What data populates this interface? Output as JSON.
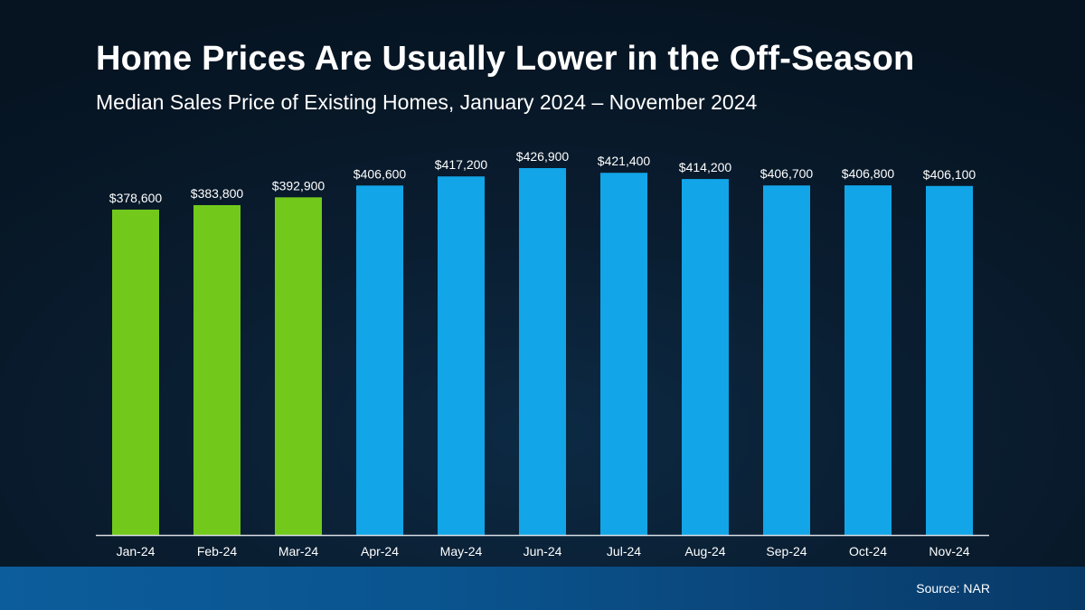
{
  "title": "Home Prices Are Usually Lower in the Off-Season",
  "subtitle": "Median Sales Price of Existing Homes, January 2024 – November 2024",
  "source": "Source: NAR",
  "colors": {
    "off_season": "#72c91c",
    "peak": "#12a5e8",
    "axis": "#d9dde3",
    "text": "#ffffff"
  },
  "chart_data": {
    "type": "bar",
    "categories": [
      "Jan-24",
      "Feb-24",
      "Mar-24",
      "Apr-24",
      "May-24",
      "Jun-24",
      "Jul-24",
      "Aug-24",
      "Sep-24",
      "Oct-24",
      "Nov-24"
    ],
    "values": [
      378600,
      383800,
      392900,
      406600,
      417200,
      426900,
      421400,
      414200,
      406700,
      406800,
      406100
    ],
    "data_labels": [
      "$378,600",
      "$383,800",
      "$392,900",
      "$406,600",
      "$417,200",
      "$426,900",
      "$421,400",
      "$414,200",
      "$406,700",
      "$406,800",
      "$406,100"
    ],
    "bar_color_groups": [
      "off_season",
      "off_season",
      "off_season",
      "peak",
      "peak",
      "peak",
      "peak",
      "peak",
      "peak",
      "peak",
      "peak"
    ],
    "title": "Home Prices Are Usually Lower in the Off-Season",
    "subtitle": "Median Sales Price of Existing Homes, January 2024 – November 2024",
    "xlabel": "",
    "ylabel": "",
    "ylim": [
      0,
      426900
    ],
    "grid": false,
    "legend": "none"
  }
}
